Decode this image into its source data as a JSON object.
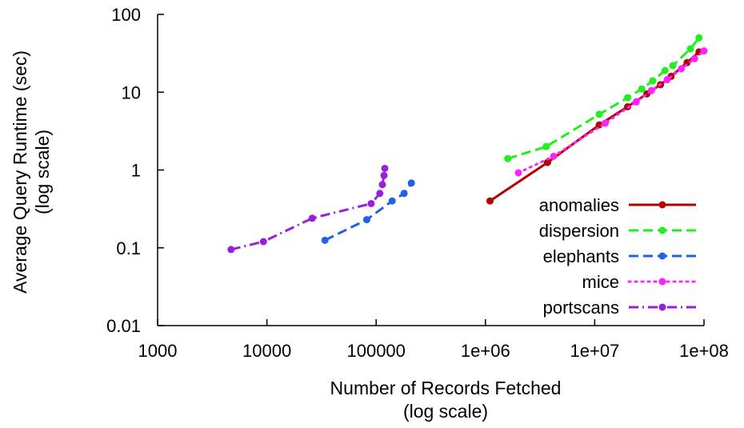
{
  "chart_data": {
    "type": "line",
    "xlabel": "Number of Records Fetched",
    "xlabel_sub": "(log scale)",
    "ylabel": "Average Query Runtime (sec)",
    "ylabel_sub": "(log scale)",
    "xscale": "log",
    "yscale": "log",
    "xlim": [
      1000,
      100000000
    ],
    "ylim": [
      0.01,
      100
    ],
    "x_ticks": [
      "1000",
      "10000",
      "100000",
      "1e+06",
      "1e+07",
      "1e+08"
    ],
    "y_ticks": [
      "0.01",
      "0.1",
      "1",
      "10",
      "100"
    ],
    "grid": false,
    "legend_position": "bottom-right",
    "series": [
      {
        "name": "anomalies",
        "color": "#b30000",
        "dash": "solid",
        "x": [
          1100000,
          3700000,
          11000000,
          20000000,
          30000000,
          40000000,
          50000000,
          70000000,
          90000000
        ],
        "y": [
          0.4,
          1.25,
          3.8,
          6.5,
          9.5,
          12.5,
          16,
          24,
          33
        ]
      },
      {
        "name": "dispersion",
        "color": "#1fef1f",
        "dash": "dashed",
        "x": [
          1600000,
          3600000,
          11000000,
          20000000,
          27000000,
          34000000,
          44000000,
          52000000,
          75000000,
          90000000
        ],
        "y": [
          1.4,
          2.0,
          5.2,
          8.5,
          11,
          14,
          19,
          22,
          36,
          50
        ]
      },
      {
        "name": "elephants",
        "color": "#1f62e6",
        "dash": "dashed",
        "x": [
          34000,
          82000,
          140000,
          180000,
          210000
        ],
        "y": [
          0.125,
          0.23,
          0.4,
          0.5,
          0.68
        ]
      },
      {
        "name": "mice",
        "color": "#ff22ff",
        "dash": "dotted",
        "x": [
          2000000,
          4200000,
          12500000,
          24000000,
          33000000,
          46000000,
          62000000,
          82000000,
          100000000
        ],
        "y": [
          0.92,
          1.5,
          4.0,
          7.5,
          10.5,
          14.5,
          20,
          27,
          34
        ]
      },
      {
        "name": "portscans",
        "color": "#9a1fdc",
        "dash": "dashdot",
        "x": [
          4700,
          9300,
          26000,
          90000,
          108000,
          114000,
          118000,
          120000
        ],
        "y": [
          0.095,
          0.12,
          0.24,
          0.37,
          0.5,
          0.65,
          0.85,
          1.05
        ]
      }
    ]
  }
}
